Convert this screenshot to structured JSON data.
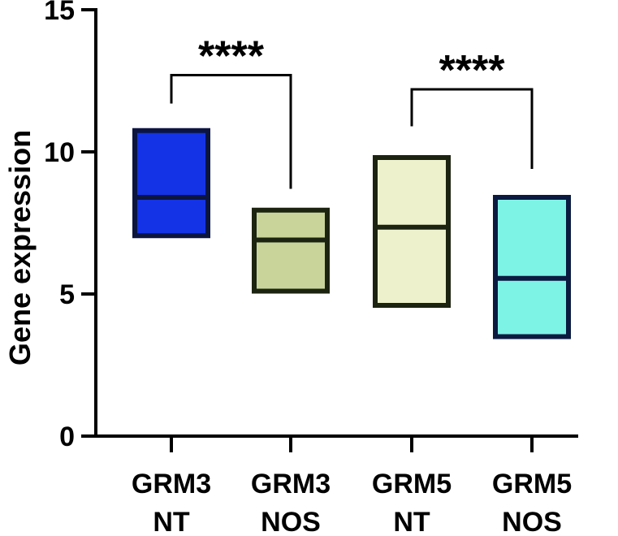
{
  "chart_data": {
    "type": "box",
    "title": "",
    "xlabel": "",
    "ylabel": "Gene expression",
    "ylim": [
      0,
      15
    ],
    "yticks": [
      0,
      5,
      10,
      15
    ],
    "grid": false,
    "legend": "none",
    "categories": [
      [
        "GRM3",
        "NT"
      ],
      [
        "GRM3",
        "NOS"
      ],
      [
        "GRM5",
        "NT"
      ],
      [
        "GRM5",
        "NOS"
      ]
    ],
    "boxes": [
      {
        "q1": 7.05,
        "median": 8.4,
        "q3": 10.75,
        "fill": "#1433e6",
        "stroke": "#0b1540"
      },
      {
        "q1": 5.1,
        "median": 6.9,
        "q3": 7.95,
        "fill": "#c9d49a",
        "stroke": "#1c2310"
      },
      {
        "q1": 4.6,
        "median": 7.35,
        "q3": 9.8,
        "fill": "#eef2cc",
        "stroke": "#1c2310"
      },
      {
        "q1": 3.5,
        "median": 5.55,
        "q3": 8.4,
        "fill": "#7df3e6",
        "stroke": "#0b1a40"
      }
    ],
    "significance": [
      {
        "from": 0,
        "to": 1,
        "label": "****",
        "y": 12.7,
        "left_end": 11.7,
        "right_end": 8.7
      },
      {
        "from": 2,
        "to": 3,
        "label": "****",
        "y": 12.2,
        "left_end": 10.9,
        "right_end": 9.4
      }
    ]
  }
}
